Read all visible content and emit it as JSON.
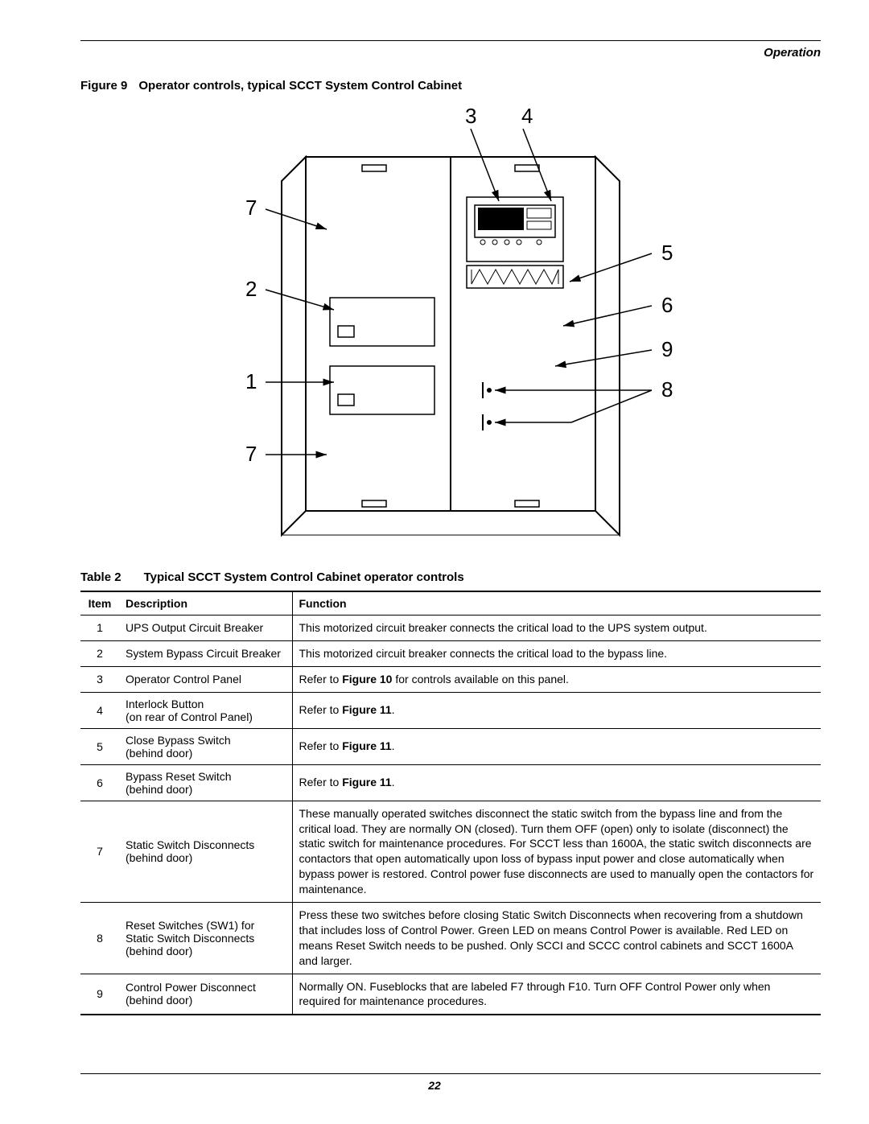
{
  "header": {
    "section": "Operation"
  },
  "figure": {
    "label": "Figure 9",
    "title": "Operator controls, typical SCCT System Control Cabinet",
    "callouts": {
      "c1": "1",
      "c2": "2",
      "c3": "3",
      "c4": "4",
      "c5": "5",
      "c6": "6",
      "c7a": "7",
      "c7b": "7",
      "c8": "8",
      "c9": "9"
    },
    "stroke": "#000000",
    "fill": "#ffffff"
  },
  "table": {
    "label": "Table 2",
    "title": "Typical SCCT System Control Cabinet operator controls",
    "headers": {
      "item": "Item",
      "desc": "Description",
      "func": "Function"
    },
    "rows": [
      {
        "item": "1",
        "desc": "UPS Output Circuit Breaker",
        "func_html": "This motorized circuit breaker connects the critical load to the UPS system output."
      },
      {
        "item": "2",
        "desc": "System Bypass Circuit Breaker",
        "func_html": "This motorized circuit breaker connects the critical load to the bypass line."
      },
      {
        "item": "3",
        "desc": "Operator Control Panel",
        "func_html": "Refer to <b>Figure 10</b> for controls available on this panel."
      },
      {
        "item": "4",
        "desc": "Interlock Button\n(on rear of Control Panel)",
        "func_html": "Refer to <b>Figure 11</b>."
      },
      {
        "item": "5",
        "desc": "Close Bypass Switch\n(behind door)",
        "func_html": "Refer to <b>Figure 11</b>."
      },
      {
        "item": "6",
        "desc": "Bypass Reset Switch\n(behind door)",
        "func_html": "Refer to <b>Figure 11</b>."
      },
      {
        "item": "7",
        "desc": "Static Switch Disconnects\n(behind door)",
        "func_html": "These manually operated switches disconnect the static switch from the bypass line and from the critical load. They are normally ON (closed). Turn them OFF (open) only to isolate (disconnect) the static switch for maintenance procedures. For SCCT less than 1600A, the static switch disconnects are contactors that open automatically upon loss of bypass input power and close automatically when bypass power is restored. Control power fuse disconnects are used to manually open the contactors for maintenance."
      },
      {
        "item": "8",
        "desc": "Reset Switches (SW1) for Static Switch Disconnects\n(behind door)",
        "func_html": "Press these two switches before closing Static Switch Disconnects when recovering from a shutdown that includes loss of Control Power. Green LED on means Control Power is available. Red LED on means Reset Switch needs to be pushed. Only SCCI and SCCC control cabinets and SCCT 1600A and larger."
      },
      {
        "item": "9",
        "desc": "Control Power Disconnect\n(behind door)",
        "func_html": "Normally ON. Fuseblocks that are labeled F7 through F10. Turn OFF Control Power only when required for maintenance procedures."
      }
    ]
  },
  "footer": {
    "page": "22"
  }
}
